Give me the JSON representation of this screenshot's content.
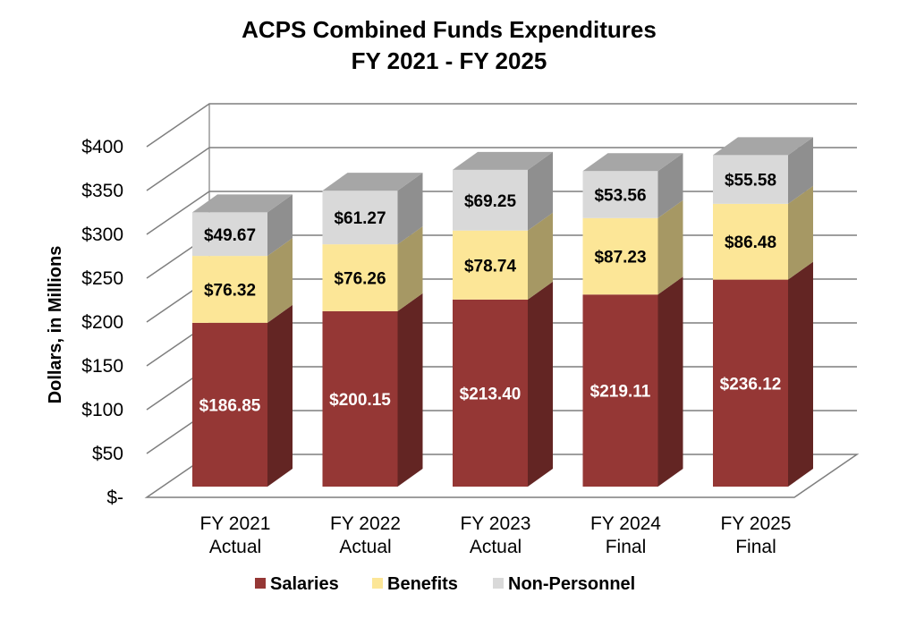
{
  "chart_data": {
    "type": "bar",
    "stacked": true,
    "three_d": true,
    "title": "ACPS Combined Funds Expenditures",
    "subtitle": "FY 2021 - FY 2025",
    "ylabel": "Dollars, in Millions",
    "xlabel": "",
    "ylim": [
      0,
      400
    ],
    "yticks": [
      0,
      50,
      100,
      150,
      200,
      250,
      300,
      350,
      400
    ],
    "ytick_labels": [
      "$-",
      "$50",
      "$100",
      "$150",
      "$200",
      "$250",
      "$300",
      "$350",
      "$400"
    ],
    "grid": true,
    "legend_position": "bottom",
    "categories": [
      [
        "FY 2021",
        "Actual"
      ],
      [
        "FY 2022",
        "Actual"
      ],
      [
        "FY 2023",
        "Actual"
      ],
      [
        "FY 2024",
        "Final"
      ],
      [
        "FY 2025",
        "Final"
      ]
    ],
    "series": [
      {
        "name": "Salaries",
        "color": "#953735",
        "side_color": "#632523",
        "top_color": "#7a2b29",
        "label_color": "#ffffff",
        "values": [
          186.85,
          200.15,
          213.4,
          219.11,
          236.12
        ],
        "labels": [
          "$186.85",
          "$200.15",
          "$213.40",
          "$219.11",
          "$236.12"
        ]
      },
      {
        "name": "Benefits",
        "color": "#fce697",
        "side_color": "#a69864",
        "top_color": "#d6c480",
        "label_color": "#000000",
        "values": [
          76.32,
          76.26,
          78.74,
          87.23,
          86.48
        ],
        "labels": [
          "$76.32",
          "$76.26",
          "$78.74",
          "$87.23",
          "$86.48"
        ]
      },
      {
        "name": "Non-Personnel",
        "color": "#d9d9d9",
        "side_color": "#8f8f8f",
        "top_color": "#a6a6a6",
        "label_color": "#000000",
        "values": [
          49.67,
          61.27,
          69.25,
          53.56,
          55.58
        ],
        "labels": [
          "$49.67",
          "$61.27",
          "$69.25",
          "$53.56",
          "$55.58"
        ]
      }
    ]
  }
}
